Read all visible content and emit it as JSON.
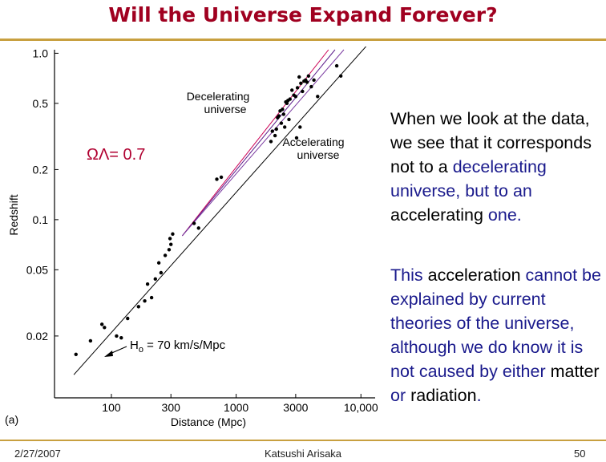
{
  "slide": {
    "title": "Will the Universe Expand Forever?",
    "para1": {
      "pre": "When we look at the data, we see that it corresponds not to a",
      "term1": "decelerating",
      "mid": "universe, but to an",
      "term2": "accelerating",
      "post": "one."
    },
    "para2": {
      "pre": "This",
      "term1": "acceleration",
      "mid": "cannot be explained by current theories of the universe, although we do know it is not caused by either",
      "term2": "matter",
      "or": "or",
      "term3": "radiation",
      "end": "."
    },
    "footer": {
      "date": "2/27/2007",
      "author": "Katsushi Arisaka",
      "page": "50"
    }
  },
  "chart_data": {
    "type": "scatter",
    "title": "",
    "panel_label": "(a)",
    "xlabel": "Distance (Mpc)",
    "ylabel": "Redshift",
    "x_scale": "log",
    "y_scale": "log",
    "xlim": [
      35,
      13000
    ],
    "ylim": [
      0.0085,
      1.05
    ],
    "x_ticks": [
      100,
      300,
      1000,
      3000,
      10000
    ],
    "x_tick_labels": [
      "100",
      "300",
      "1000",
      "3000",
      "10,000"
    ],
    "y_ticks": [
      1.0,
      0.5,
      0.2,
      0.1,
      0.05,
      0.02
    ],
    "y_tick_labels": [
      "1.0",
      "0.5",
      "0.2",
      "0.1",
      "0.05",
      "0.02"
    ],
    "annotations": {
      "omega_label": "ΩΛ= 0.7",
      "decel_line1": "Decelerating",
      "decel_line2": "universe",
      "accel_line1": "Accelerating",
      "accel_line2": "universe",
      "h0_label_sym": "H",
      "h0_label_sub": "o",
      "h0_label_rest": " = 70 km/s/Mpc"
    },
    "lines": [
      {
        "name": "Hubble law H0 = 70 km/s/Mpc",
        "x": [
          50,
          11000
        ],
        "y": [
          0.0117,
          1.1
        ],
        "color": "#000000"
      },
      {
        "name": "Decelerating universe",
        "x": [
          370,
          5500
        ],
        "y": [
          0.08,
          1.05
        ],
        "color": "#cc0055"
      },
      {
        "name": "Accelerating universe (mid)",
        "x": [
          370,
          6200
        ],
        "y": [
          0.08,
          1.05
        ],
        "color": "#5a1a8a"
      },
      {
        "name": "Accelerating universe",
        "x": [
          370,
          7300
        ],
        "y": [
          0.08,
          1.05
        ],
        "color": "#7a3aa0"
      }
    ],
    "points": {
      "x": [
        52,
        68,
        84,
        88,
        110,
        120,
        135,
        165,
        185,
        195,
        210,
        225,
        240,
        250,
        270,
        290,
        300,
        295,
        310,
        500,
        460,
        700,
        760,
        1900,
        1950,
        2050,
        2100,
        2200,
        2150,
        2300,
        2250,
        2350,
        2400,
        2500,
        2550,
        2600,
        2700,
        2800,
        2900,
        3000,
        3100,
        3200,
        3300,
        3400,
        3500,
        3600,
        3700,
        3800,
        4000,
        4200,
        4500,
        2450,
        2650,
        3050,
        3250,
        6400,
        6900
      ],
      "y": [
        0.0155,
        0.0187,
        0.0235,
        0.0225,
        0.02,
        0.0195,
        0.0255,
        0.03,
        0.0325,
        0.041,
        0.034,
        0.044,
        0.055,
        0.048,
        0.061,
        0.066,
        0.071,
        0.077,
        0.082,
        0.089,
        0.095,
        0.175,
        0.18,
        0.295,
        0.34,
        0.32,
        0.35,
        0.42,
        0.41,
        0.38,
        0.45,
        0.46,
        0.43,
        0.51,
        0.5,
        0.52,
        0.53,
        0.6,
        0.56,
        0.55,
        0.62,
        0.72,
        0.66,
        0.59,
        0.68,
        0.69,
        0.67,
        0.73,
        0.63,
        0.69,
        0.55,
        0.36,
        0.4,
        0.31,
        0.36,
        0.84,
        0.73
      ]
    }
  }
}
